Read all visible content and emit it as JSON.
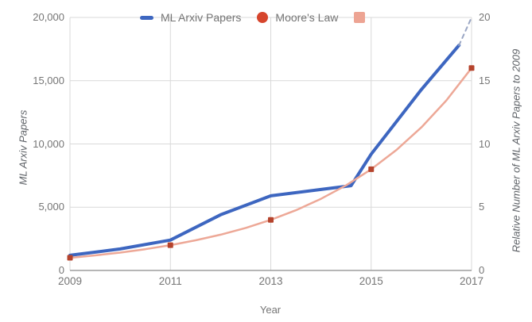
{
  "chart_data": {
    "type": "line",
    "title": "",
    "xlabel": "Year",
    "ylabel_left": "ML Arxiv Papers",
    "ylabel_right": "Relative Number of ML Arxiv Papers to 2009",
    "xlim": [
      2009,
      2017
    ],
    "ylim_left": [
      0,
      20000
    ],
    "ylim_right": [
      0,
      20
    ],
    "x_ticks": [
      "2009",
      "2011",
      "2013",
      "2015",
      "2017"
    ],
    "x_tick_values": [
      2009,
      2011,
      2013,
      2015,
      2017
    ],
    "y_ticks_left": [
      "0",
      "5,000",
      "10,000",
      "15,000",
      "20,000"
    ],
    "y_tick_values_left": [
      0,
      5000,
      10000,
      15000,
      20000
    ],
    "y_ticks_right": [
      "0",
      "5",
      "10",
      "15",
      "20"
    ],
    "y_tick_values_right": [
      0,
      5,
      10,
      15,
      20
    ],
    "grid": "on",
    "legend_position": "top",
    "series": [
      {
        "id": "ml-arxiv-papers",
        "name": "ML Arxiv Papers",
        "axis": "left",
        "style": "solid",
        "color": "#3d66c0",
        "width": 4,
        "x": [
          2009,
          2010,
          2011,
          2012,
          2013,
          2014,
          2014.6,
          2015,
          2016,
          2016.75
        ],
        "values": [
          1200,
          1700,
          2400,
          4400,
          5900,
          6400,
          6700,
          9200,
          14300,
          17800
        ]
      },
      {
        "id": "ml-arxiv-papers-projection",
        "name": "ML Arxiv Papers (dashed projection to 2017)",
        "axis": "left",
        "style": "dashed",
        "color": "#9aa6c4",
        "width": 2,
        "x": [
          2016.75,
          2017
        ],
        "values": [
          17800,
          20000
        ]
      },
      {
        "id": "moores-law",
        "name": "Moore's Law",
        "axis": "right",
        "style": "solid",
        "color": "#eda897",
        "width": 2.5,
        "x": [
          2009,
          2009.5,
          2010,
          2010.5,
          2011,
          2011.5,
          2012,
          2012.5,
          2013,
          2013.5,
          2014,
          2014.5,
          2015,
          2015.5,
          2016,
          2016.5,
          2017
        ],
        "values": [
          1,
          1.19,
          1.41,
          1.68,
          2,
          2.38,
          2.83,
          3.36,
          4,
          4.76,
          5.66,
          6.73,
          8,
          9.51,
          11.31,
          13.45,
          16
        ],
        "markers": {
          "shape": "square",
          "color": "#b5432c",
          "size": 7,
          "points": [
            [
              2009,
              1
            ],
            [
              2011,
              2
            ],
            [
              2013,
              4
            ],
            [
              2015,
              8
            ],
            [
              2017,
              16
            ]
          ]
        }
      }
    ],
    "legend": [
      {
        "label": "ML Arxiv Papers",
        "swatch": "dash",
        "color": "#3d66c0"
      },
      {
        "label": "Moore's Law",
        "swatch": "circle",
        "color": "#d6452c"
      },
      {
        "label": "",
        "swatch": "square",
        "color": "#eda493"
      }
    ],
    "colors": {
      "grid": "#d9d9d9",
      "axis_line": "#9e9e9e",
      "tick_text": "#757575",
      "axis_title_text": "#5f6368",
      "background": "#ffffff"
    }
  }
}
